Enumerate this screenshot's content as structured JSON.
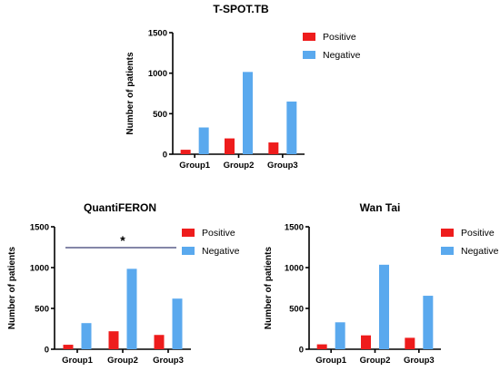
{
  "colors": {
    "positive": "#ee1c1c",
    "negative": "#5aa9ee",
    "sig_line": "#5b5f8a"
  },
  "chart_data": [
    {
      "type": "bar",
      "title": "T-SPOT.TB",
      "ylabel": "Number of patients",
      "ylim": [
        0,
        1500
      ],
      "yticks": [
        "0",
        "500",
        "1000",
        "1500"
      ],
      "categories": [
        "Group1",
        "Group2",
        "Group3"
      ],
      "series": [
        {
          "name": "Positive",
          "values": [
            55,
            195,
            145
          ]
        },
        {
          "name": "Negative",
          "values": [
            330,
            1015,
            650
          ]
        }
      ],
      "legend": "top-right",
      "annotation": ""
    },
    {
      "type": "bar",
      "title": "QuantiFERON",
      "ylabel": "Number of patients",
      "ylim": [
        0,
        1500
      ],
      "yticks": [
        "0",
        "500",
        "1000",
        "1500"
      ],
      "categories": [
        "Group1",
        "Group2",
        "Group3"
      ],
      "series": [
        {
          "name": "Positive",
          "values": [
            55,
            220,
            175
          ]
        },
        {
          "name": "Negative",
          "values": [
            320,
            985,
            620
          ]
        }
      ],
      "legend": "top-right",
      "annotation": "*"
    },
    {
      "type": "bar",
      "title": "Wan Tai",
      "ylabel": "Number of patients",
      "ylim": [
        0,
        1500
      ],
      "yticks": [
        "0",
        "500",
        "1000",
        "1500"
      ],
      "categories": [
        "Group1",
        "Group2",
        "Group3"
      ],
      "series": [
        {
          "name": "Positive",
          "values": [
            60,
            170,
            140
          ]
        },
        {
          "name": "Negative",
          "values": [
            330,
            1035,
            655
          ]
        }
      ],
      "legend": "top-right",
      "annotation": ""
    }
  ]
}
